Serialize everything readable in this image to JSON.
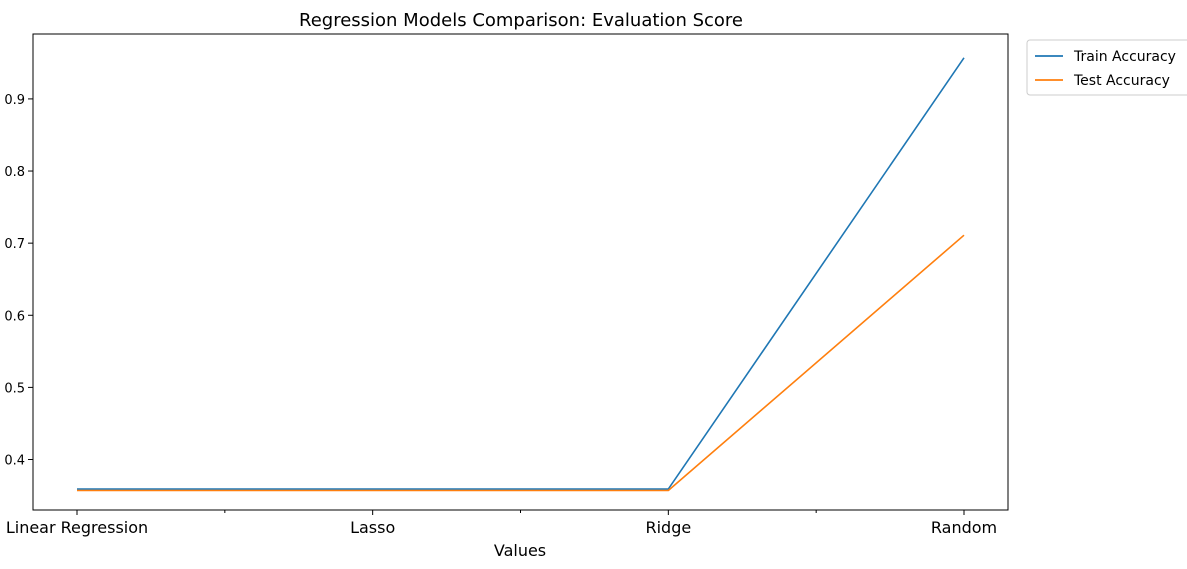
{
  "chart_data": {
    "type": "line",
    "title": "Regression Models Comparison: Evaluation Score",
    "xlabel": "Values",
    "ylabel": "",
    "categories": [
      "Linear Regression",
      "Lasso",
      "Ridge",
      "Random"
    ],
    "x_minor_ticks": true,
    "ylim": [
      0.33,
      0.99
    ],
    "yticks": [
      0.4,
      0.5,
      0.6,
      0.7,
      0.8,
      0.9
    ],
    "ytick_labels": [
      "0.4",
      "0.5",
      "0.6",
      "0.7",
      "0.8",
      "0.9"
    ],
    "grid": false,
    "legend_position": "outside-top-right",
    "series": [
      {
        "name": "Train Accuracy",
        "color": "#1f77b4",
        "values": [
          0.359,
          0.359,
          0.359,
          0.957
        ]
      },
      {
        "name": "Test Accuracy",
        "color": "#ff7f0e",
        "values": [
          0.357,
          0.357,
          0.357,
          0.711
        ]
      }
    ]
  }
}
